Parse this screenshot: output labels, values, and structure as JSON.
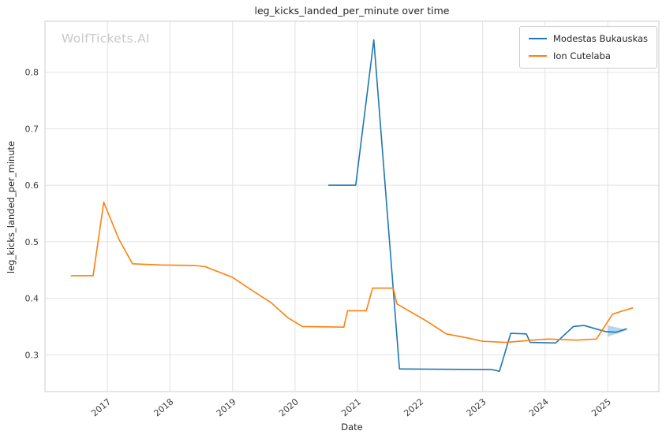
{
  "watermark": {
    "text": "WolfTickets.AI"
  },
  "chart_data": {
    "type": "line",
    "title": "leg_kicks_landed_per_minute over time",
    "xlabel": "Date",
    "ylabel": "leg_kicks_landed_per_minute",
    "grid": true,
    "legend_position": "upper right",
    "xlim": [
      2016.0,
      2025.82
    ],
    "ylim": [
      0.235,
      0.89
    ],
    "x_ticks": [
      2017,
      2018,
      2019,
      2020,
      2021,
      2022,
      2023,
      2024,
      2025
    ],
    "x_tick_labels": [
      "2017",
      "2018",
      "2019",
      "2020",
      "2021",
      "2022",
      "2023",
      "2024",
      "2025"
    ],
    "y_ticks": [
      0.3,
      0.4,
      0.5,
      0.6,
      0.7,
      0.8
    ],
    "y_tick_labels": [
      "0.3",
      "0.4",
      "0.5",
      "0.6",
      "0.7",
      "0.8"
    ],
    "series": [
      {
        "name": "Modestas Bukauskas",
        "color": "#1f77b4",
        "points": [
          [
            2020.54,
            0.6
          ],
          [
            2020.97,
            0.6
          ],
          [
            2021.26,
            0.857
          ],
          [
            2021.67,
            0.275
          ],
          [
            2023.14,
            0.274
          ],
          [
            2023.27,
            0.271
          ],
          [
            2023.45,
            0.338
          ],
          [
            2023.7,
            0.337
          ],
          [
            2023.76,
            0.322
          ],
          [
            2024.17,
            0.321
          ],
          [
            2024.45,
            0.35
          ],
          [
            2024.62,
            0.352
          ],
          [
            2024.97,
            0.341
          ],
          [
            2025.14,
            0.34
          ],
          [
            2025.3,
            0.346
          ]
        ]
      },
      {
        "name": "Ion Cutelaba",
        "color": "#ff7f0e",
        "points": [
          [
            2016.42,
            0.44
          ],
          [
            2016.77,
            0.44
          ],
          [
            2016.94,
            0.57
          ],
          [
            2017.18,
            0.505
          ],
          [
            2017.4,
            0.461
          ],
          [
            2017.85,
            0.459
          ],
          [
            2018.4,
            0.458
          ],
          [
            2018.56,
            0.456
          ],
          [
            2019.0,
            0.437
          ],
          [
            2019.34,
            0.412
          ],
          [
            2019.62,
            0.392
          ],
          [
            2019.88,
            0.366
          ],
          [
            2020.12,
            0.35
          ],
          [
            2020.78,
            0.349
          ],
          [
            2020.84,
            0.378
          ],
          [
            2021.14,
            0.378
          ],
          [
            2021.24,
            0.418
          ],
          [
            2021.57,
            0.418
          ],
          [
            2021.63,
            0.39
          ],
          [
            2022.1,
            0.36
          ],
          [
            2022.42,
            0.337
          ],
          [
            2022.75,
            0.33
          ],
          [
            2023.0,
            0.324
          ],
          [
            2023.38,
            0.322
          ],
          [
            2023.8,
            0.326
          ],
          [
            2024.05,
            0.328
          ],
          [
            2024.5,
            0.326
          ],
          [
            2024.82,
            0.328
          ],
          [
            2025.08,
            0.372
          ],
          [
            2025.22,
            0.377
          ],
          [
            2025.4,
            0.383
          ]
        ]
      }
    ],
    "annotations": [
      {
        "type": "triangle",
        "color": "#9dc7e8",
        "opacity": 0.75,
        "points": [
          [
            2025.0,
            0.352
          ],
          [
            2025.0,
            0.332
          ],
          [
            2025.32,
            0.344
          ]
        ]
      }
    ],
    "style": {
      "grid_color": "#e2e2e2",
      "spine_color": "#cccccc",
      "tick_label_color": "#3b3b3b",
      "plot_background": "#ffffff"
    }
  }
}
